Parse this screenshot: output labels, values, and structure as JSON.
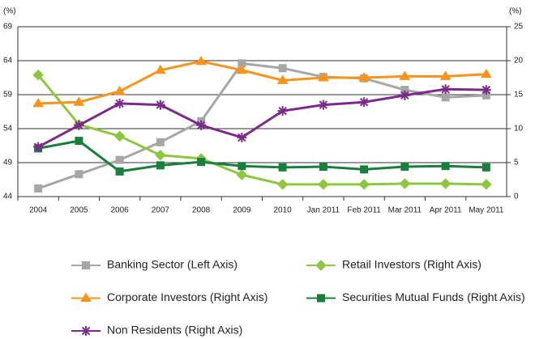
{
  "chart_data": {
    "type": "line",
    "y_label": "(%)",
    "y2_label": "(%)",
    "categories": [
      "2004",
      "2005",
      "2006",
      "2007",
      "2008",
      "2009",
      "2010",
      "Jan 2011",
      "Feb 2011",
      "Mar 2011",
      "Apr 2011",
      "May 2011"
    ],
    "ylim": [
      44,
      69
    ],
    "yticks": [
      44,
      49,
      54,
      59,
      64,
      69
    ],
    "y2lim": [
      0,
      25
    ],
    "y2ticks": [
      0,
      5,
      10,
      15,
      20,
      25
    ],
    "grid": true,
    "series": [
      {
        "name": "Banking Sector (Left Axis)",
        "color": "#a6a6a6",
        "marker": "square",
        "values": [
          45.2,
          47.3,
          49.4,
          52.0,
          55.1,
          63.6,
          62.9,
          61.6,
          61.4,
          59.7,
          58.6,
          58.9
        ]
      },
      {
        "name": "Retail Investors (Right Axis)",
        "color": "#8dc63f",
        "marker": "diamond",
        "axis": "y2",
        "values": [
          17.9,
          10.6,
          8.9,
          6.1,
          5.6,
          3.2,
          1.8,
          1.8,
          1.8,
          1.9,
          1.9,
          1.8
        ]
      },
      {
        "name": "Corporate Investors (Right Axis)",
        "color": "#f7941d",
        "marker": "triangle",
        "axis": "y2",
        "values": [
          13.7,
          13.9,
          15.5,
          18.6,
          19.9,
          18.6,
          17.1,
          17.5,
          17.5,
          17.7,
          17.7,
          18.0
        ]
      },
      {
        "name": "Securities Mutual Funds (Right Axis)",
        "color": "#1a7f3c",
        "marker": "square",
        "axis": "y2",
        "values": [
          7.1,
          8.2,
          3.7,
          4.6,
          5.1,
          4.5,
          4.3,
          4.4,
          4.0,
          4.4,
          4.5,
          4.3
        ]
      },
      {
        "name": "Non Residents (Right Axis)",
        "color": "#7b2a8a",
        "marker": "asterisk",
        "axis": "y2",
        "values": [
          7.3,
          10.5,
          13.7,
          13.5,
          10.5,
          8.7,
          12.6,
          13.5,
          13.9,
          14.9,
          15.8,
          15.7
        ]
      }
    ]
  }
}
